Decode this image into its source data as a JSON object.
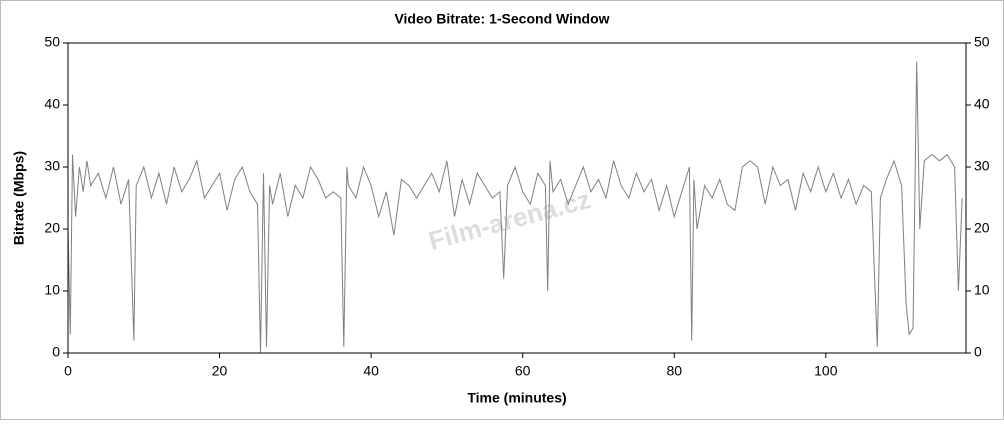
{
  "chart_data": {
    "type": "line",
    "title": "Video Bitrate: 1-Second Window",
    "x_label": "Time (minutes)",
    "y_label": "Bitrate (Mbps)",
    "watermark": "Film-arena.cz",
    "xlim": [
      0,
      118.5
    ],
    "xticks": [
      0,
      20,
      40,
      60,
      80,
      100
    ],
    "ylim": [
      0,
      50
    ],
    "yticks": [
      0,
      10,
      20,
      30,
      40,
      50
    ],
    "y2lim": [
      0,
      50
    ],
    "y2ticks": [
      0,
      10,
      20,
      30,
      40,
      50
    ],
    "grid": false,
    "series": [
      {
        "color": "#808080",
        "x": [
          0,
          0.3,
          0.6,
          1,
          1.5,
          2,
          2.5,
          3,
          4,
          5,
          6,
          7,
          8,
          8.7,
          9,
          10,
          11,
          12,
          13,
          14,
          15,
          16,
          17,
          18,
          19,
          20,
          21,
          22,
          23,
          24,
          25,
          25.4,
          25.8,
          26.2,
          26.6,
          27,
          28,
          29,
          30,
          31,
          32,
          33,
          34,
          35,
          36,
          36.4,
          36.8,
          37,
          38,
          39,
          40,
          41,
          42,
          43,
          44,
          45,
          46,
          47,
          48,
          49,
          50,
          51,
          52,
          53,
          54,
          55,
          56,
          57,
          57.5,
          58,
          59,
          60,
          61,
          62,
          63,
          63.3,
          63.6,
          64,
          65,
          66,
          67,
          68,
          69,
          70,
          71,
          72,
          73,
          74,
          75,
          76,
          77,
          78,
          79,
          80,
          81,
          82,
          82.3,
          82.6,
          83,
          84,
          85,
          86,
          87,
          88,
          89,
          90,
          91,
          92,
          93,
          94,
          95,
          96,
          97,
          98,
          99,
          100,
          101,
          102,
          103,
          104,
          105,
          106,
          106.8,
          107.2,
          108,
          109,
          110,
          110.6,
          111,
          111.5,
          112,
          112.4,
          113,
          114,
          115,
          116,
          117,
          117.5,
          118
        ],
        "values": [
          20,
          3,
          32,
          22,
          30,
          26,
          31,
          27,
          29,
          25,
          30,
          24,
          28,
          2,
          27,
          30,
          25,
          29,
          24,
          30,
          26,
          28,
          31,
          25,
          27,
          29,
          23,
          28,
          30,
          26,
          24,
          0,
          29,
          1,
          27,
          24,
          29,
          22,
          27,
          25,
          30,
          28,
          25,
          26,
          25,
          1,
          30,
          27,
          25,
          30,
          27,
          22,
          26,
          19,
          28,
          27,
          25,
          27,
          29,
          26,
          31,
          22,
          28,
          24,
          29,
          27,
          25,
          26,
          12,
          27,
          30,
          26,
          24,
          29,
          27,
          10,
          31,
          26,
          28,
          24,
          27,
          30,
          26,
          28,
          25,
          31,
          27,
          25,
          29,
          26,
          28,
          23,
          27,
          22,
          26,
          30,
          2,
          28,
          20,
          27,
          25,
          28,
          24,
          23,
          30,
          31,
          30,
          24,
          30,
          27,
          28,
          23,
          29,
          26,
          30,
          26,
          29,
          25,
          28,
          24,
          27,
          26,
          1,
          25,
          28,
          31,
          27,
          8,
          3,
          4,
          47,
          20,
          31,
          32,
          31,
          32,
          30,
          10,
          25
        ]
      }
    ]
  }
}
